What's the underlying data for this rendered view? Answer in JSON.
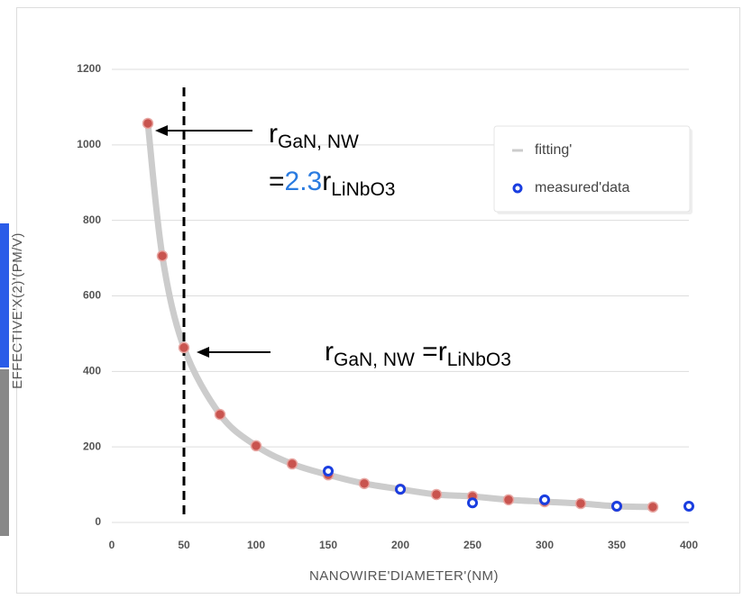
{
  "chart_data": {
    "type": "line",
    "xlabel": "NANOWIRE'DIAMETER'(NM)",
    "ylabel": "EFFECTIVE'X(2)'(PM/V)",
    "xlim": [
      0,
      400
    ],
    "xticks": [
      0,
      50,
      100,
      150,
      200,
      250,
      300,
      350,
      400
    ],
    "ylim": [
      0,
      1200
    ],
    "yticks": [
      0,
      200,
      400,
      600,
      800,
      1000,
      1200
    ],
    "grid": true,
    "legend": "upper right",
    "vline": 50,
    "series": [
      {
        "name": "fitting'",
        "color": "#cccccc",
        "marker_color": "#c9544f",
        "x": [
          25,
          35,
          50,
          75,
          100,
          125,
          150,
          175,
          200,
          225,
          250,
          275,
          300,
          325,
          350,
          375
        ],
        "values": [
          1057,
          706,
          463,
          286,
          203,
          155,
          126,
          103,
          88,
          74,
          69,
          60,
          55,
          50,
          43,
          41
        ]
      },
      {
        "name": "measured'data",
        "color": "#1a3ee0",
        "x": [
          150,
          200,
          250,
          300,
          350,
          400
        ],
        "values": [
          136,
          88,
          52,
          60,
          43,
          43
        ]
      }
    ],
    "annotations": [
      {
        "r": "r",
        "sub1": "GaN, NW",
        "eq": "=",
        "factor": "2.3",
        "r2": "r",
        "sub2": "LiNbO3"
      },
      {
        "r": "r",
        "sub1": "GaN, NW",
        "eq": " =r",
        "sub2": "LiNbO3"
      }
    ]
  }
}
